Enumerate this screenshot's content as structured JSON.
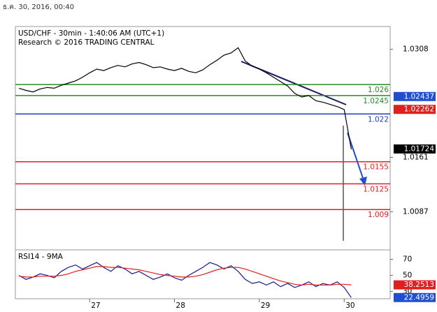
{
  "header": {
    "date": "ธ.ค. 30, 2016, 00:40"
  },
  "chart_data": [
    {
      "type": "line",
      "title": "USD/CHF - 30min - 1:40:06 AM (UTC+1)",
      "subtitle": "Research © 2016 TRADING CENTRAL",
      "ylim": [
        1.0038,
        1.0337
      ],
      "yticks": [
        1.0087,
        1.0161,
        1.0308
      ],
      "series": [
        {
          "color": "#000000",
          "values": [
            1.0255,
            1.0252,
            1.025,
            1.0254,
            1.0256,
            1.0255,
            1.0259,
            1.0262,
            1.0265,
            1.027,
            1.0276,
            1.0281,
            1.0279,
            1.0283,
            1.0286,
            1.0284,
            1.0288,
            1.029,
            1.0287,
            1.0283,
            1.0284,
            1.0281,
            1.0279,
            1.0282,
            1.0278,
            1.0276,
            1.028,
            1.0287,
            1.0293,
            1.03,
            1.0303,
            1.031,
            1.0292,
            1.0285,
            1.0281,
            1.0276,
            1.027,
            1.0264,
            1.0258,
            1.0248,
            1.0243,
            1.0245,
            1.0238,
            1.0236,
            1.0233,
            1.023,
            1.0226,
            1.0172
          ]
        }
      ],
      "levels": [
        {
          "value": 1.026,
          "color": "#2a8a2a"
        },
        {
          "value": 1.0245,
          "color": "#2a8a2a"
        },
        {
          "value": 1.022,
          "color": "#1f3fbf"
        },
        {
          "value": 1.0155,
          "color": "#e02020"
        },
        {
          "value": 1.0125,
          "color": "#e02020"
        },
        {
          "value": 1.009,
          "color": "#e02020"
        }
      ],
      "tags": [
        {
          "value": 1.02437,
          "color": "#1f4fd0"
        },
        {
          "value": 1.02262,
          "color": "#e02020"
        },
        {
          "value": 1.01724,
          "color": "#000000"
        }
      ]
    },
    {
      "type": "line",
      "title": "RSI14 - 9MA",
      "ylim": [
        21,
        80
      ],
      "yticks": [
        30,
        50,
        70
      ],
      "categories": [
        null,
        null,
        null,
        null,
        null,
        null,
        null,
        null,
        null,
        null,
        "27",
        null,
        null,
        null,
        null,
        null,
        null,
        null,
        null,
        null,
        null,
        null,
        "28",
        null,
        null,
        null,
        null,
        null,
        null,
        null,
        null,
        null,
        null,
        null,
        "29",
        null,
        null,
        null,
        null,
        null,
        null,
        null,
        null,
        null,
        null,
        null,
        "30",
        null
      ],
      "series": [
        {
          "color": "#1a1a8c",
          "values": [
            50,
            45,
            48,
            52,
            50,
            47,
            55,
            60,
            63,
            58,
            62,
            66,
            60,
            55,
            62,
            58,
            52,
            55,
            50,
            45,
            48,
            52,
            47,
            44,
            50,
            55,
            60,
            66,
            63,
            58,
            62,
            55,
            45,
            40,
            42,
            38,
            42,
            36,
            40,
            35,
            38,
            42,
            36,
            40,
            38,
            42,
            35,
            22.4959
          ]
        },
        {
          "color": "#e02020",
          "values": [
            49,
            48,
            48,
            49,
            49,
            49,
            50,
            52,
            55,
            57,
            59,
            61,
            61,
            60,
            60,
            59,
            58,
            57,
            55,
            53,
            51,
            50,
            49,
            48,
            48,
            49,
            51,
            54,
            57,
            59,
            60,
            60,
            58,
            55,
            52,
            49,
            46,
            43,
            41,
            39,
            38,
            39,
            38,
            38,
            38,
            39,
            39,
            38.2513
          ]
        }
      ],
      "tags": [
        {
          "value": 38.2513,
          "color": "#e02020"
        },
        {
          "value": 22.4959,
          "color": "#1f4fd0"
        }
      ]
    }
  ]
}
